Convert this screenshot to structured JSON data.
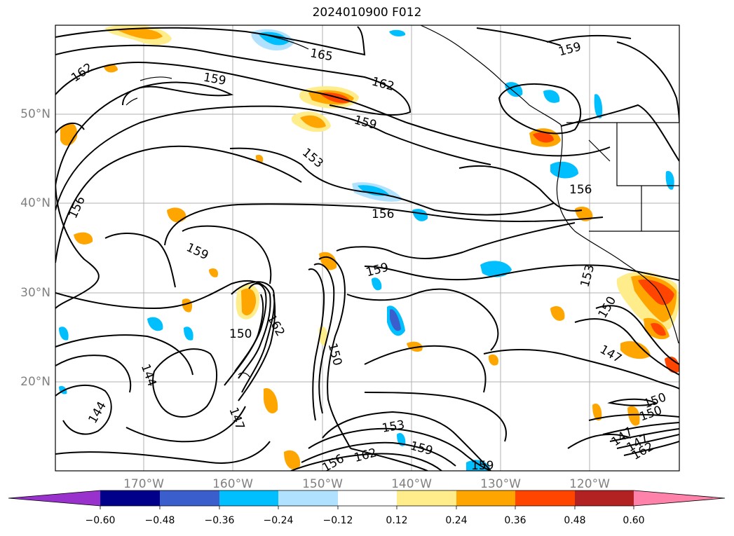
{
  "map": {
    "title": "2024010900 F012",
    "lat_labels": [
      "50°N",
      "40°N",
      "30°N",
      "20°N"
    ],
    "lon_labels": [
      "170°W",
      "160°W",
      "150°W",
      "140°W",
      "130°W",
      "120°W"
    ],
    "contour_labels": [
      "162",
      "165",
      "159",
      "162",
      "159",
      "153",
      "156",
      "156",
      "156",
      "159",
      "159",
      "153",
      "150",
      "162",
      "150",
      "150",
      "144",
      "144",
      "147",
      "147",
      "153",
      "156",
      "162",
      "159",
      "159",
      "147",
      "150",
      "147",
      "150",
      "162",
      "159"
    ],
    "colorbar": {
      "ticks": [
        "−0.60",
        "−0.48",
        "−0.36",
        "−0.24",
        "−0.12",
        "0.12",
        "0.24",
        "0.36",
        "0.48",
        "0.60"
      ],
      "colors": [
        "#9932cc",
        "#00008b",
        "#3a5fcd",
        "#00bfff",
        "#b0e2ff",
        "#ffffff",
        "#ffec8b",
        "#ffa500",
        "#ff4500",
        "#b22222",
        "#ff82ab"
      ]
    },
    "contour_color": "#000000",
    "grid_color": "#b0b0b0",
    "label_color": "#808080"
  }
}
